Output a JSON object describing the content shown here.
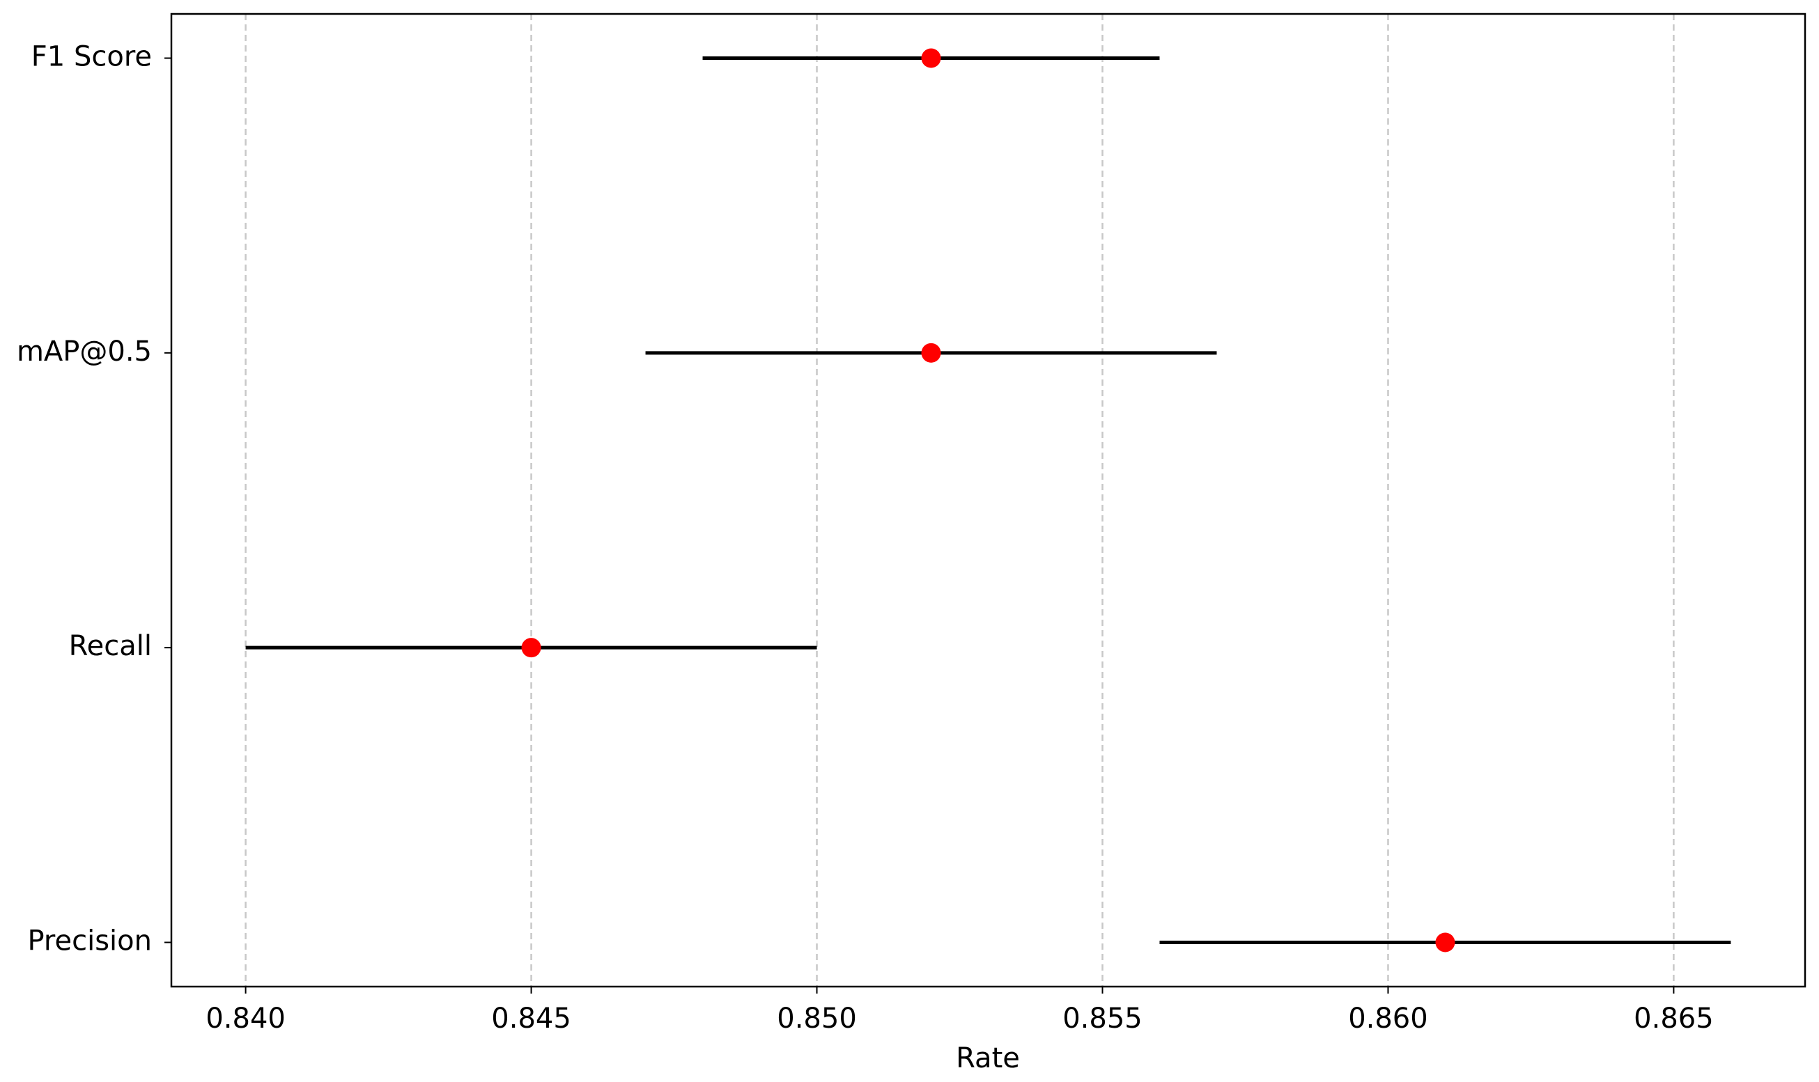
{
  "chart_data": {
    "type": "errorbar",
    "xlabel": "Rate",
    "categories": [
      "F1 Score",
      "mAP@0.5",
      "Recall",
      "Precision"
    ],
    "values": [
      0.852,
      0.852,
      0.845,
      0.861
    ],
    "errors": [
      0.004,
      0.005,
      0.005,
      0.005
    ],
    "color": "#ff0000",
    "error_color": "#000000",
    "xlim": [
      0.8387,
      0.8673
    ],
    "xticks": [
      {
        "value": 0.84,
        "label": "0.840"
      },
      {
        "value": 0.845,
        "label": "0.845"
      },
      {
        "value": 0.85,
        "label": "0.850"
      },
      {
        "value": 0.855,
        "label": "0.855"
      },
      {
        "value": 0.86,
        "label": "0.860"
      },
      {
        "value": 0.865,
        "label": "0.865"
      }
    ],
    "grid": true
  }
}
